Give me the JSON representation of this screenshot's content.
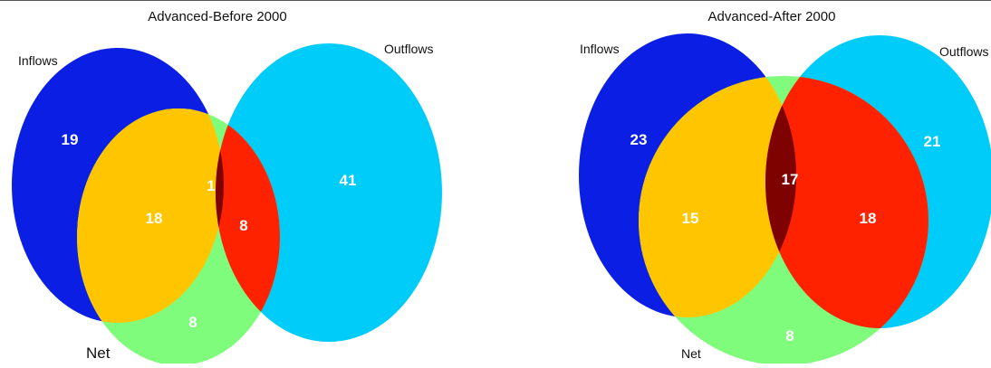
{
  "colors": {
    "inflows": "#0a1fe3",
    "outflows": "#00ccf9",
    "net": "#80fc7c",
    "inflows_net": "#ffc600",
    "outflows_net": "#ff2200",
    "inflows_outflows": "#80fc7c",
    "all_three": "#7e0200"
  },
  "diagrams": [
    {
      "title": "Advanced-Before 2000",
      "labels": {
        "inflows": "Inflows",
        "outflows": "Outflows",
        "net": "Net"
      },
      "counts": {
        "inflows_only": "19",
        "outflows_only": "41",
        "net_only": "8",
        "inflows_net": "18",
        "outflows_net": "8",
        "all_three": "1"
      }
    },
    {
      "title": "Advanced-After 2000",
      "labels": {
        "inflows": "Inflows",
        "outflows": "Outflows",
        "net": "Net"
      },
      "counts": {
        "inflows_only": "23",
        "outflows_only": "21",
        "net_only": "8",
        "inflows_net": "15",
        "outflows_net": "18",
        "all_three": "17"
      }
    }
  ]
}
